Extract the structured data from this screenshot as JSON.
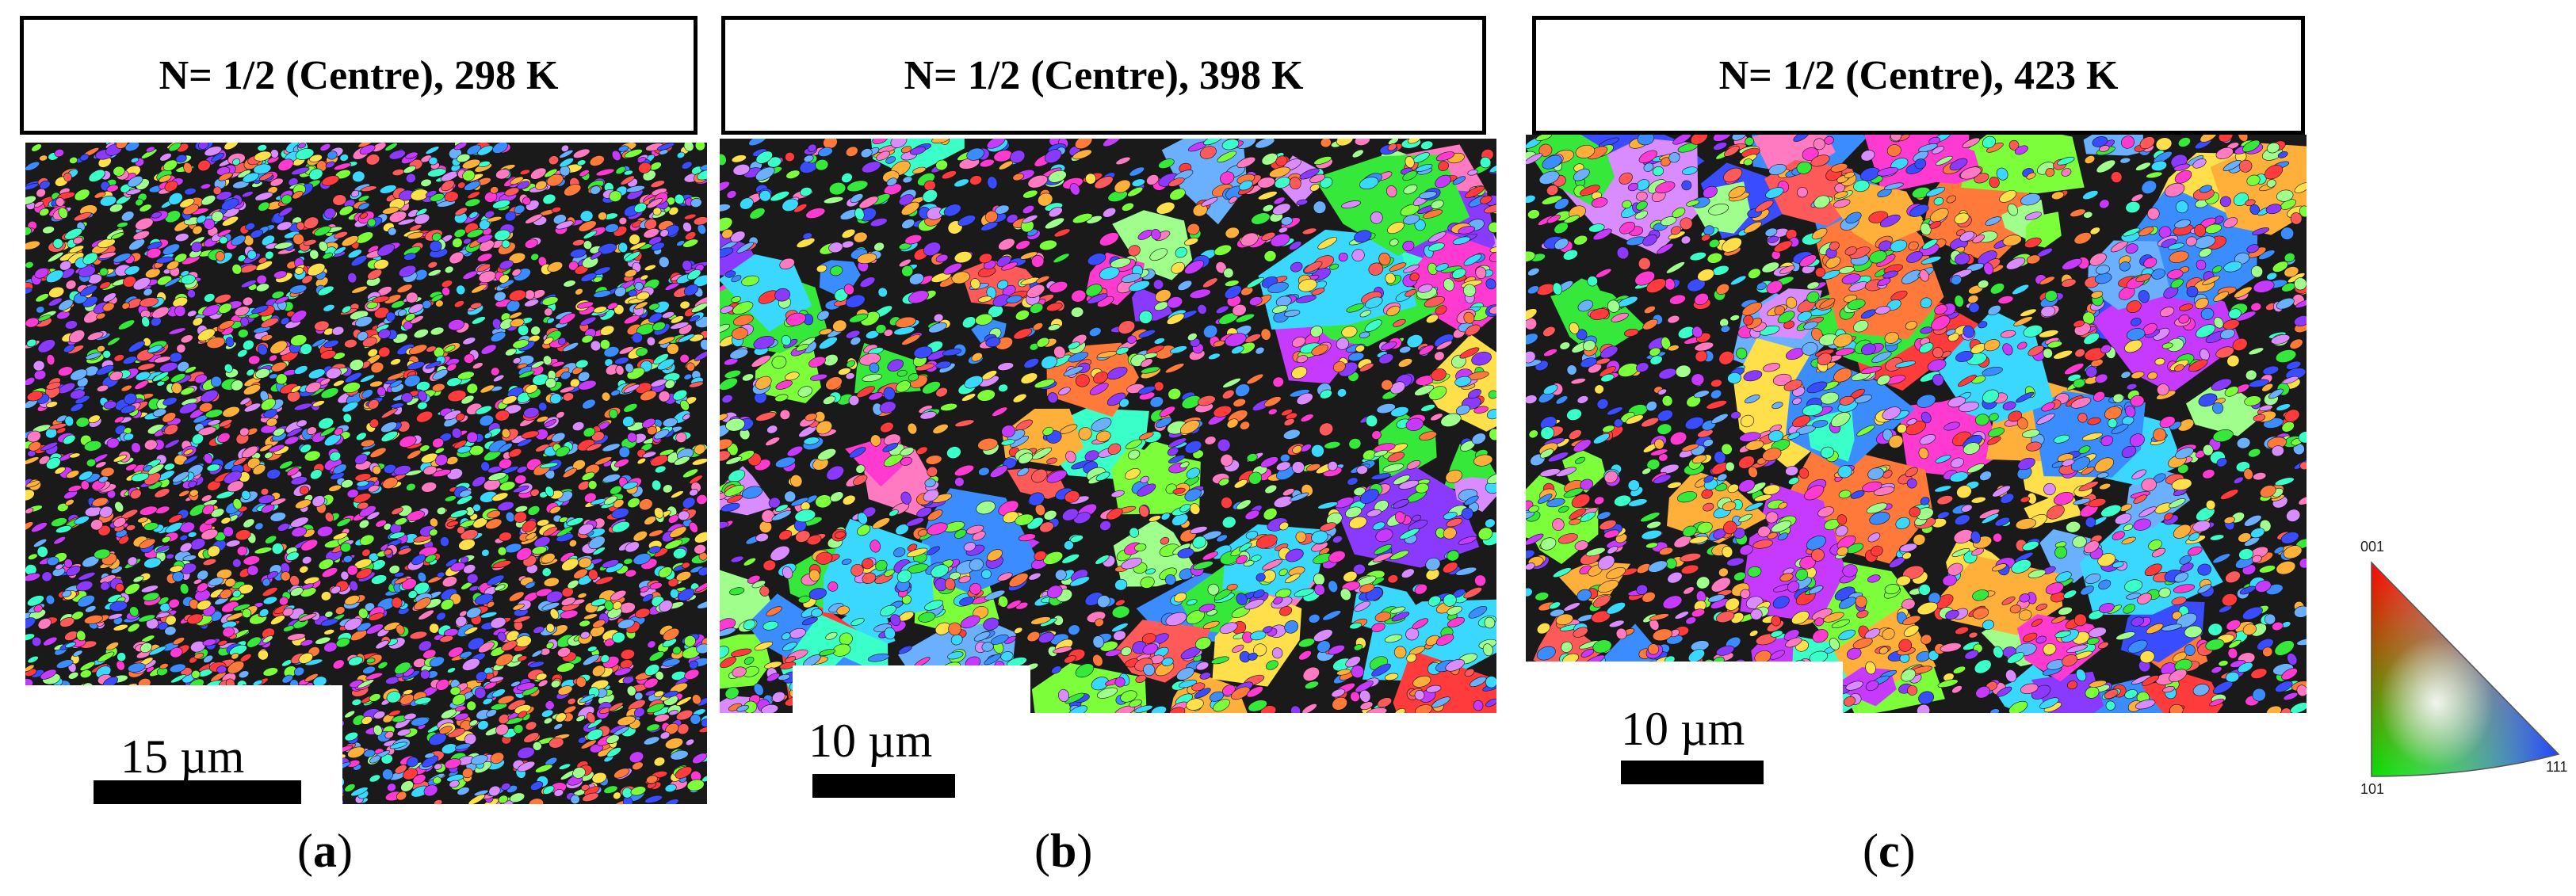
{
  "panels": [
    {
      "title": "N= 1/2 (Centre), 298 K",
      "scale": "15 µm",
      "letter": "a"
    },
    {
      "title": "N= 1/2 (Centre), 398 K",
      "scale": "10 µm",
      "letter": "b"
    },
    {
      "title": "N= 1/2 (Centre), 423 K",
      "scale": "10 µm",
      "letter": "c"
    }
  ],
  "key": {
    "top": "001",
    "left": "101",
    "right": "111"
  },
  "colors": {
    "grain_palette": [
      "#ff3b3b",
      "#ff7a3a",
      "#ffb03a",
      "#ffe04a",
      "#7cff3a",
      "#35e83a",
      "#3affc8",
      "#3ad8ff",
      "#3a8cff",
      "#3a4cff",
      "#8a3aff",
      "#c63aff",
      "#ff3ad0",
      "#ff7ac0",
      "#ff5a5a",
      "#a0ff8c",
      "#6ab0ff",
      "#d98cff"
    ],
    "boundary": "#101010"
  }
}
